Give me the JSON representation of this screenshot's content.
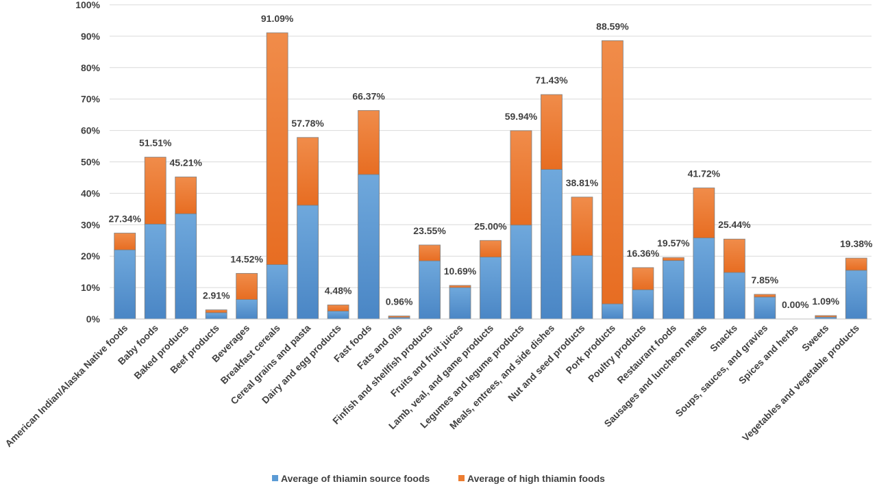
{
  "chart_data": {
    "type": "bar",
    "stacked": true,
    "title": "",
    "xlabel": "",
    "ylabel": "",
    "ylim": [
      0,
      100
    ],
    "ytick_step": 10,
    "ytick_format": "percent",
    "grid": "horizontal",
    "legend_position": "bottom",
    "categories": [
      "American Indian/Alaska Native foods",
      "Baby foods",
      "Baked products",
      "Beef products",
      "Beverages",
      "Breakfast cereals",
      "Cereal grains and pasta",
      "Dairy and egg products",
      "Fast foods",
      "Fats and oils",
      "Finfish and shellfish products",
      "Fruits and fruit juices",
      "Lamb, veal, and game products",
      "Legumes and legume products",
      "Meals, entrees, and side dishes",
      "Nut and seed products",
      "Pork products",
      "Poultry products",
      "Restaurant foods",
      "Sausages and luncheon meats",
      "Snacks",
      "Soups, sauces, and gravies",
      "Spices and herbs",
      "Sweets",
      "Vegetables and vegetable products"
    ],
    "series": [
      {
        "name": "Average of thiamin source foods",
        "color": "#5B9BD5",
        "values": [
          22.0,
          30.2,
          33.5,
          2.0,
          6.2,
          17.3,
          36.2,
          2.5,
          46.0,
          0.5,
          18.5,
          10.0,
          19.7,
          29.9,
          47.6,
          20.2,
          4.8,
          9.3,
          18.6,
          25.8,
          14.8,
          7.0,
          0.0,
          0.6,
          15.5
        ]
      },
      {
        "name": "Average of high thiamin foods",
        "color": "#ED7D31",
        "values": [
          5.34,
          21.31,
          11.71,
          0.91,
          8.32,
          73.79,
          21.58,
          1.98,
          20.37,
          0.46,
          5.05,
          0.69,
          5.3,
          30.04,
          23.83,
          18.61,
          83.79,
          7.06,
          0.97,
          15.92,
          10.64,
          0.85,
          0.0,
          0.49,
          3.88
        ]
      }
    ],
    "totals_labels": [
      "27.34%",
      "51.51%",
      "45.21%",
      "2.91%",
      "14.52%",
      "91.09%",
      "57.78%",
      "4.48%",
      "66.37%",
      "0.96%",
      "23.55%",
      "10.69%",
      "25.00%",
      "59.94%",
      "71.43%",
      "38.81%",
      "88.59%",
      "16.36%",
      "19.57%",
      "41.72%",
      "25.44%",
      "7.85%",
      "0.00%",
      "1.09%",
      "19.38%"
    ],
    "ytick_labels": [
      "0%",
      "10%",
      "20%",
      "30%",
      "40%",
      "50%",
      "60%",
      "70%",
      "80%",
      "90%",
      "100%"
    ]
  }
}
